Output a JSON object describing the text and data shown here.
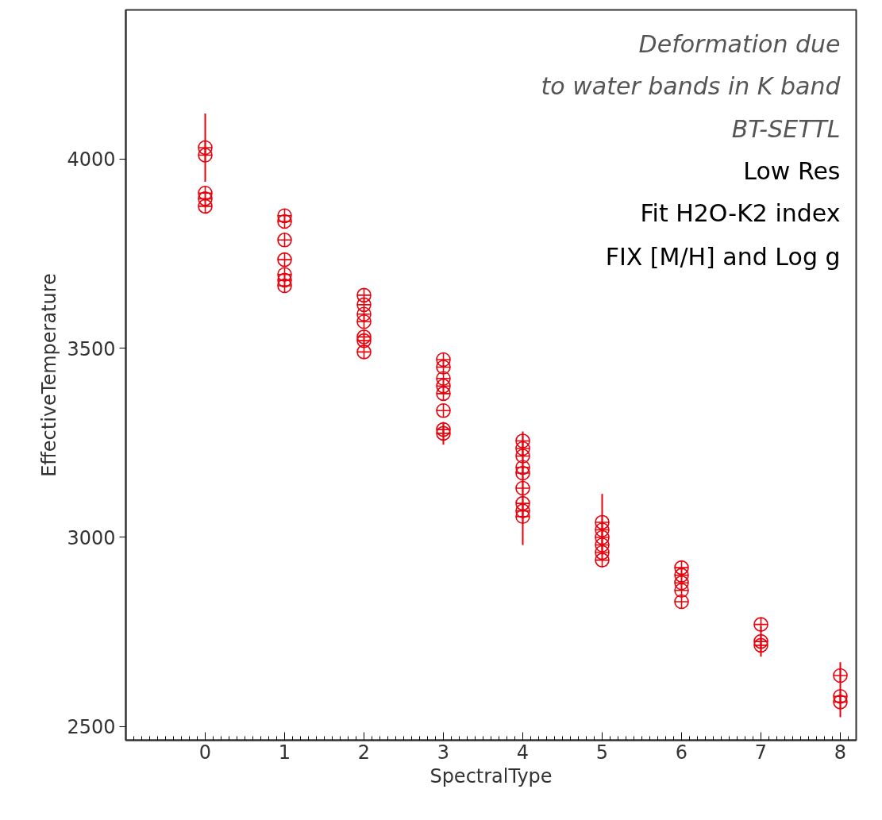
{
  "chart_data": {
    "type": "scatter",
    "xlabel": "SpectralType",
    "ylabel": "EffectiveTemperature",
    "annotations": [
      "Deformation due",
      "to water bands in K band",
      "BT-SETTL",
      "Low Res",
      "Fit H2O-K2 index",
      "FIX [M/H] and Log g"
    ],
    "series": [
      {
        "color": "#e8000b",
        "x": [
          0,
          0,
          0,
          0,
          0,
          1,
          1,
          1,
          1,
          1,
          1,
          1,
          2,
          2,
          2,
          2,
          2,
          2,
          2,
          3,
          3,
          3,
          3,
          3,
          3,
          3,
          3,
          4,
          4,
          4,
          4,
          4,
          4,
          4,
          4,
          4,
          5,
          5,
          5,
          5,
          5,
          5,
          6,
          6,
          6,
          6,
          6,
          7,
          7,
          7,
          8,
          8,
          8
        ],
        "values": [
          4030,
          4010,
          3910,
          3895,
          3875,
          3850,
          3835,
          3786,
          3734,
          3695,
          3680,
          3665,
          3640,
          3615,
          3590,
          3570,
          3530,
          3520,
          3490,
          3470,
          3450,
          3420,
          3400,
          3380,
          3335,
          3285,
          3275,
          3255,
          3235,
          3215,
          3185,
          3170,
          3130,
          3090,
          3070,
          3055,
          3040,
          3020,
          3000,
          2980,
          2960,
          2940,
          2920,
          2900,
          2880,
          2860,
          2830,
          2770,
          2725,
          2715,
          2635,
          2580,
          2565
        ],
        "errors": [
          90,
          null,
          null,
          null,
          null,
          null,
          null,
          null,
          null,
          null,
          null,
          null,
          null,
          null,
          null,
          null,
          null,
          null,
          null,
          null,
          null,
          null,
          null,
          null,
          null,
          null,
          30,
          null,
          null,
          null,
          null,
          null,
          150,
          null,
          null,
          null,
          75,
          null,
          null,
          null,
          null,
          null,
          null,
          null,
          null,
          null,
          null,
          null,
          40,
          null,
          null,
          [
            2525,
            2670
          ],
          null
        ]
      }
    ],
    "xlim": [
      -1,
      8.2
    ],
    "ylim": [
      2464,
      4394
    ],
    "xticks": [
      0,
      1,
      2,
      3,
      4,
      5,
      6,
      7,
      8
    ],
    "yticks": [
      2500,
      3000,
      3500,
      4000
    ],
    "marker": "circle",
    "grid": false
  }
}
